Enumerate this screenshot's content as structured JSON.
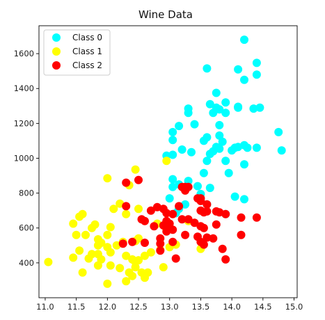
{
  "chart_data": {
    "type": "scatter",
    "title": "Wine Data",
    "xlabel": "",
    "ylabel": "",
    "xlim": [
      10.9,
      15.05
    ],
    "ylim": [
      200,
      1760
    ],
    "xticks": [
      "11.0",
      "11.5",
      "12.0",
      "12.5",
      "13.0",
      "13.5",
      "14.0",
      "14.5",
      "15.0"
    ],
    "yticks": [
      "400",
      "600",
      "800",
      "1000",
      "1200",
      "1400",
      "1600"
    ],
    "legend_position": "top-left",
    "series": [
      {
        "name": "Class 0",
        "color": "#00ffff",
        "points": [
          [
            14.2,
            1680
          ],
          [
            14.4,
            1547
          ],
          [
            14.1,
            1510
          ],
          [
            14.4,
            1480
          ],
          [
            14.2,
            1450
          ],
          [
            13.6,
            1515
          ],
          [
            13.75,
            1375
          ],
          [
            13.9,
            1320
          ],
          [
            13.65,
            1310
          ],
          [
            13.75,
            1290
          ],
          [
            13.8,
            1280
          ],
          [
            14.1,
            1290
          ],
          [
            14.1,
            1295
          ],
          [
            14.35,
            1285
          ],
          [
            14.45,
            1290
          ],
          [
            13.3,
            1285
          ],
          [
            13.9,
            1260
          ],
          [
            13.7,
            1260
          ],
          [
            13.3,
            1260
          ],
          [
            13.4,
            1195
          ],
          [
            13.15,
            1185
          ],
          [
            13.05,
            1150
          ],
          [
            13.05,
            1105
          ],
          [
            13.8,
            1190
          ],
          [
            13.8,
            1130
          ],
          [
            13.55,
            1100
          ],
          [
            13.6,
            1120
          ],
          [
            13.85,
            1095
          ],
          [
            13.75,
            1065
          ],
          [
            13.8,
            1055
          ],
          [
            13.7,
            1040
          ],
          [
            14.0,
            1045
          ],
          [
            14.05,
            1060
          ],
          [
            14.1,
            1065
          ],
          [
            14.2,
            1075
          ],
          [
            14.25,
            1060
          ],
          [
            14.4,
            1060
          ],
          [
            14.75,
            1150
          ],
          [
            14.8,
            1045
          ],
          [
            13.2,
            1050
          ],
          [
            13.05,
            1020
          ],
          [
            12.95,
            1015
          ],
          [
            13.35,
            1035
          ],
          [
            13.65,
            1025
          ],
          [
            13.6,
            985
          ],
          [
            13.9,
            985
          ],
          [
            14.2,
            965
          ],
          [
            13.95,
            915
          ],
          [
            13.55,
            915
          ],
          [
            13.05,
            880
          ],
          [
            13.15,
            850
          ],
          [
            13.3,
            870
          ],
          [
            13.05,
            835
          ],
          [
            13.45,
            840
          ],
          [
            13.5,
            795
          ],
          [
            13.65,
            830
          ],
          [
            13.0,
            770
          ],
          [
            14.05,
            780
          ],
          [
            14.2,
            765
          ],
          [
            13.25,
            735
          ],
          [
            13.6,
            735
          ],
          [
            13.15,
            710
          ],
          [
            13.1,
            685
          ],
          [
            13.9,
            680
          ]
        ]
      },
      {
        "name": "Class 1",
        "color": "#ffff00",
        "points": [
          [
            12.95,
            985
          ],
          [
            12.45,
            935
          ],
          [
            12.0,
            885
          ],
          [
            12.35,
            845
          ],
          [
            12.2,
            740
          ],
          [
            12.3,
            680
          ],
          [
            12.5,
            710
          ],
          [
            12.1,
            710
          ],
          [
            11.6,
            680
          ],
          [
            11.55,
            665
          ],
          [
            11.8,
            620
          ],
          [
            11.45,
            625
          ],
          [
            11.75,
            600
          ],
          [
            12.05,
            605
          ],
          [
            11.5,
            560
          ],
          [
            11.65,
            560
          ],
          [
            11.85,
            535
          ],
          [
            12.0,
            560
          ],
          [
            11.9,
            515
          ],
          [
            11.85,
            500
          ],
          [
            12.0,
            490
          ],
          [
            12.15,
            500
          ],
          [
            12.25,
            520
          ],
          [
            12.45,
            525
          ],
          [
            11.55,
            470
          ],
          [
            11.75,
            450
          ],
          [
            11.85,
            450
          ],
          [
            12.05,
            460
          ],
          [
            11.45,
            430
          ],
          [
            11.7,
            425
          ],
          [
            11.9,
            420
          ],
          [
            12.3,
            440
          ],
          [
            12.4,
            420
          ],
          [
            12.45,
            405
          ],
          [
            12.5,
            415
          ],
          [
            12.6,
            440
          ],
          [
            11.05,
            405
          ],
          [
            11.85,
            385
          ],
          [
            12.05,
            385
          ],
          [
            12.2,
            370
          ],
          [
            12.35,
            345
          ],
          [
            12.45,
            375
          ],
          [
            12.55,
            345
          ],
          [
            12.65,
            345
          ],
          [
            11.6,
            345
          ],
          [
            12.4,
            325
          ],
          [
            12.6,
            315
          ],
          [
            12.3,
            295
          ],
          [
            12.0,
            280
          ],
          [
            12.7,
            460
          ],
          [
            12.85,
            475
          ],
          [
            13.0,
            490
          ],
          [
            13.1,
            505
          ],
          [
            12.9,
            375
          ],
          [
            12.5,
            540
          ],
          [
            12.95,
            590
          ],
          [
            12.8,
            625
          ],
          [
            13.3,
            640
          ],
          [
            13.5,
            480
          ]
        ]
      },
      {
        "name": "Class 2",
        "color": "#ff0000",
        "points": [
          [
            12.3,
            860
          ],
          [
            12.5,
            875
          ],
          [
            13.2,
            835
          ],
          [
            13.25,
            835
          ],
          [
            13.3,
            835
          ],
          [
            13.25,
            815
          ],
          [
            13.5,
            755
          ],
          [
            13.6,
            735
          ],
          [
            13.75,
            695
          ],
          [
            13.9,
            680
          ],
          [
            13.5,
            700
          ],
          [
            13.55,
            690
          ],
          [
            13.6,
            695
          ],
          [
            13.8,
            690
          ],
          [
            13.45,
            770
          ],
          [
            13.5,
            770
          ],
          [
            13.15,
            725
          ],
          [
            12.7,
            700
          ],
          [
            12.8,
            720
          ],
          [
            12.9,
            710
          ],
          [
            12.95,
            685
          ],
          [
            13.05,
            680
          ],
          [
            12.3,
            725
          ],
          [
            12.55,
            650
          ],
          [
            12.6,
            640
          ],
          [
            12.75,
            610
          ],
          [
            12.9,
            615
          ],
          [
            12.95,
            640
          ],
          [
            13.0,
            625
          ],
          [
            13.0,
            600
          ],
          [
            13.05,
            590
          ],
          [
            12.95,
            580
          ],
          [
            13.2,
            650
          ],
          [
            13.3,
            650
          ],
          [
            13.4,
            630
          ],
          [
            13.5,
            610
          ],
          [
            13.55,
            600
          ],
          [
            13.75,
            620
          ],
          [
            14.15,
            660
          ],
          [
            14.4,
            660
          ],
          [
            13.25,
            560
          ],
          [
            13.45,
            550
          ],
          [
            13.6,
            545
          ],
          [
            13.7,
            540
          ],
          [
            14.15,
            560
          ],
          [
            13.5,
            520
          ],
          [
            13.55,
            505
          ],
          [
            12.25,
            510
          ],
          [
            12.4,
            520
          ],
          [
            12.6,
            515
          ],
          [
            12.85,
            540
          ],
          [
            12.85,
            510
          ],
          [
            13.05,
            520
          ],
          [
            13.85,
            480
          ],
          [
            12.85,
            470
          ],
          [
            13.1,
            425
          ],
          [
            13.9,
            420
          ]
        ]
      }
    ]
  }
}
